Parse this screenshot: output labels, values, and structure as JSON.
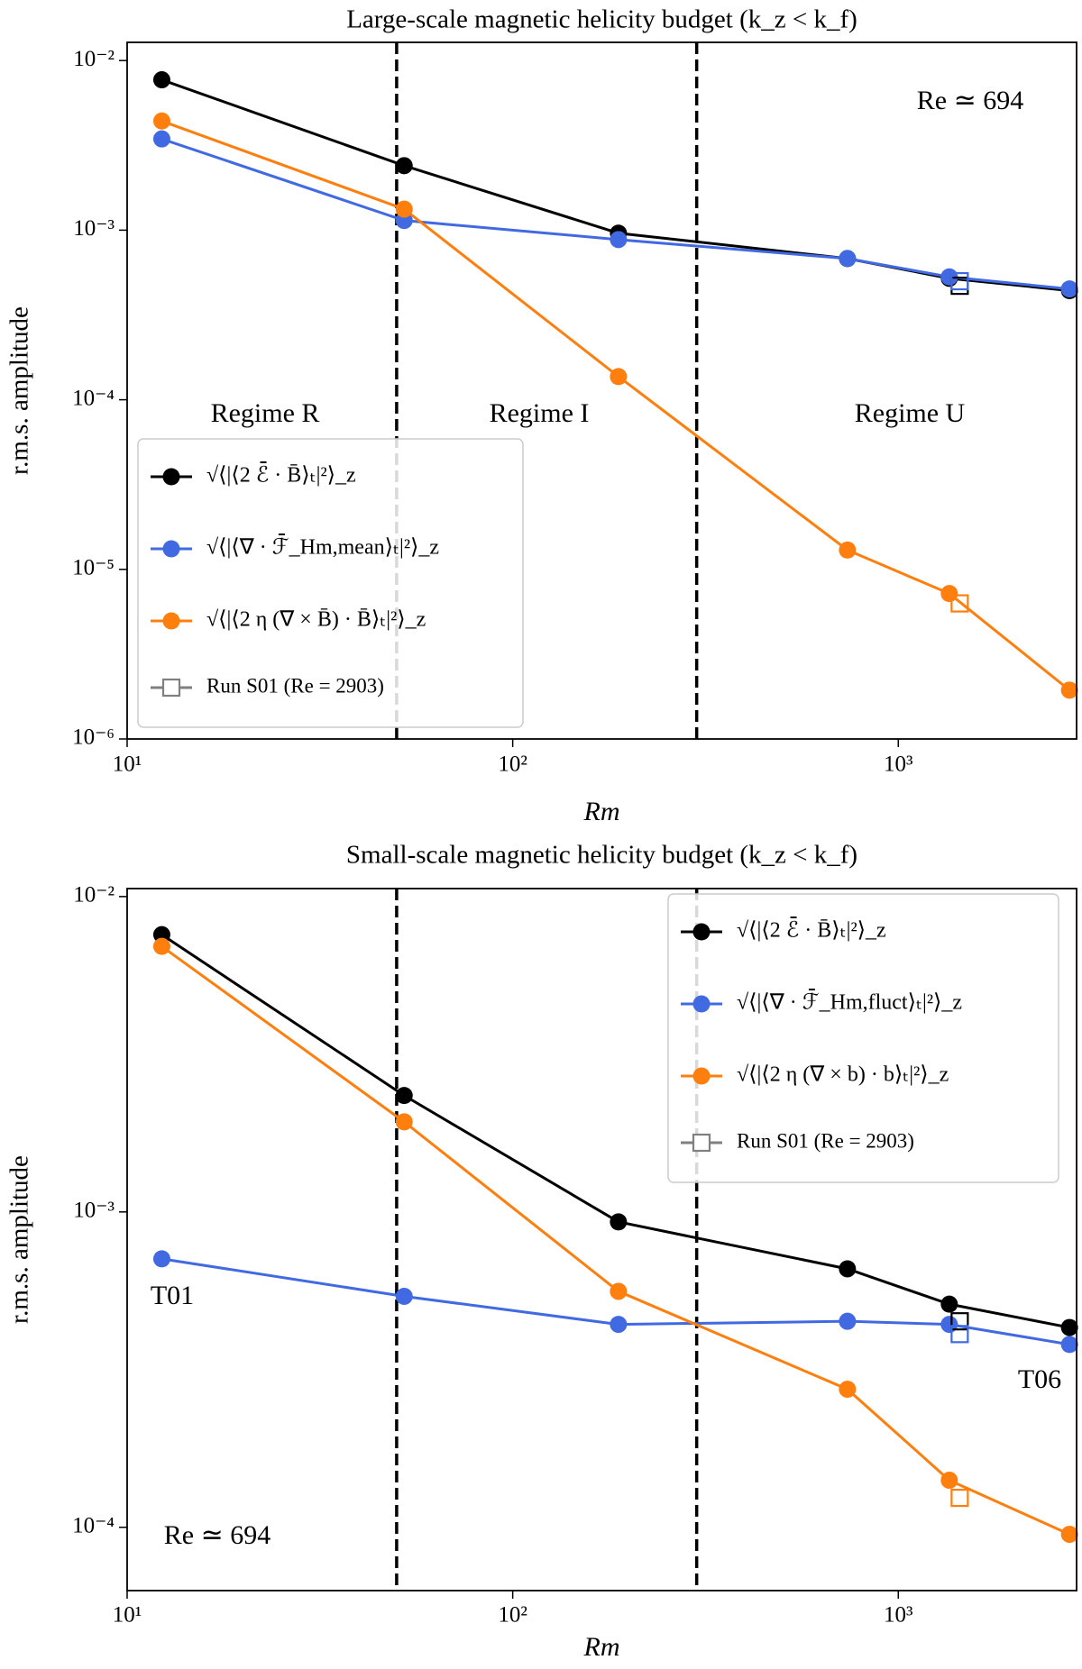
{
  "chart_data": [
    {
      "type": "line",
      "title": "Large-scale magnetic helicity budget (k_z < k_f)",
      "xlabel": "Rm",
      "ylabel": "r.m.s. amplitude",
      "xscale": "log",
      "yscale": "log",
      "xlim": [
        10,
        2900
      ],
      "ylim": [
        1e-06,
        0.0128
      ],
      "xticks": [
        {
          "value": 10,
          "label": "10¹"
        },
        {
          "value": 100,
          "label": "10²"
        },
        {
          "value": 1000,
          "label": "10³"
        }
      ],
      "yticks": [
        {
          "value": 1e-06,
          "label": "10⁻⁶"
        },
        {
          "value": 1e-05,
          "label": "10⁻⁵"
        },
        {
          "value": 0.0001,
          "label": "10⁻⁴"
        },
        {
          "value": 0.001,
          "label": "10⁻³"
        },
        {
          "value": 0.01,
          "label": "10⁻²"
        }
      ],
      "vlines": [
        50,
        300
      ],
      "x": [
        12.3,
        52.3,
        188,
        738,
        1356,
        2780
      ],
      "series": [
        {
          "name": "√⟨|⟨2 ℰ̄ · B̄⟩ₜ|²⟩_z",
          "color": "#000000",
          "values": [
            0.0077,
            0.0024,
            0.00096,
            0.00068,
            0.00052,
            0.00044
          ]
        },
        {
          "name": "√⟨|⟨∇ · ℱ̄_Hm,mean⟩ₜ|²⟩_z",
          "color": "#4169e1",
          "values": [
            0.00345,
            0.00114,
            0.00088,
            0.00068,
            0.00053,
            0.00045
          ]
        },
        {
          "name": "√⟨|⟨2 η (∇ × B̄) · B̄⟩ₜ|²⟩_z",
          "color": "#ff7f0e",
          "values": [
            0.0044,
            0.00133,
            0.000137,
            1.3e-05,
            7.2e-06,
            1.94e-06
          ]
        }
      ],
      "reference": {
        "name": "Run S01 (Re = 2903)",
        "color": "#808080",
        "x": 1443,
        "values": [
          0.00047,
          0.0005,
          6.3e-06
        ]
      },
      "annotations": [
        "Regime R",
        "Regime I",
        "Regime U",
        "Re ≃ 694"
      ],
      "legend": "lower left"
    },
    {
      "type": "line",
      "title": "Small-scale magnetic helicity budget (k_z < k_f)",
      "xlabel": "Rm",
      "ylabel": "r.m.s. amplitude",
      "xscale": "log",
      "yscale": "log",
      "xlim": [
        10,
        2900
      ],
      "ylim": [
        6.3e-05,
        0.0106
      ],
      "xticks": [
        {
          "value": 10,
          "label": "10¹"
        },
        {
          "value": 100,
          "label": "10²"
        },
        {
          "value": 1000,
          "label": "10³"
        }
      ],
      "yticks": [
        {
          "value": 0.0001,
          "label": "10⁻⁴"
        },
        {
          "value": 0.001,
          "label": "10⁻³"
        },
        {
          "value": 0.01,
          "label": "10⁻²"
        }
      ],
      "vlines": [
        50,
        300
      ],
      "x": [
        12.3,
        52.3,
        188,
        738,
        1356,
        2780
      ],
      "series": [
        {
          "name": "√⟨|⟨2 ℰ̄ · B̄⟩ₜ|²⟩_z",
          "color": "#000000",
          "values": [
            0.00757,
            0.00234,
            0.00093,
            0.00066,
            0.00051,
            0.00043
          ]
        },
        {
          "name": "√⟨|⟨∇ · ℱ̄_Hm,fluct⟩ₜ|²⟩_z",
          "color": "#4169e1",
          "values": [
            0.00071,
            0.00054,
            0.00044,
            0.00045,
            0.00044,
            0.00038
          ]
        },
        {
          "name": "√⟨|⟨2 η (∇ × b) · b⟩ₜ|²⟩_z",
          "color": "#ff7f0e",
          "values": [
            0.00695,
            0.00193,
            0.00056,
            0.000274,
            0.000141,
            9.5e-05
          ]
        }
      ],
      "reference": {
        "name": "Run S01 (Re = 2903)",
        "color": "#808080",
        "x": 1443,
        "values": [
          0.00045,
          0.00041,
          0.000124
        ]
      },
      "annotations": [
        "Re ≃ 694",
        "T01",
        "T06"
      ],
      "legend": "upper right"
    }
  ]
}
